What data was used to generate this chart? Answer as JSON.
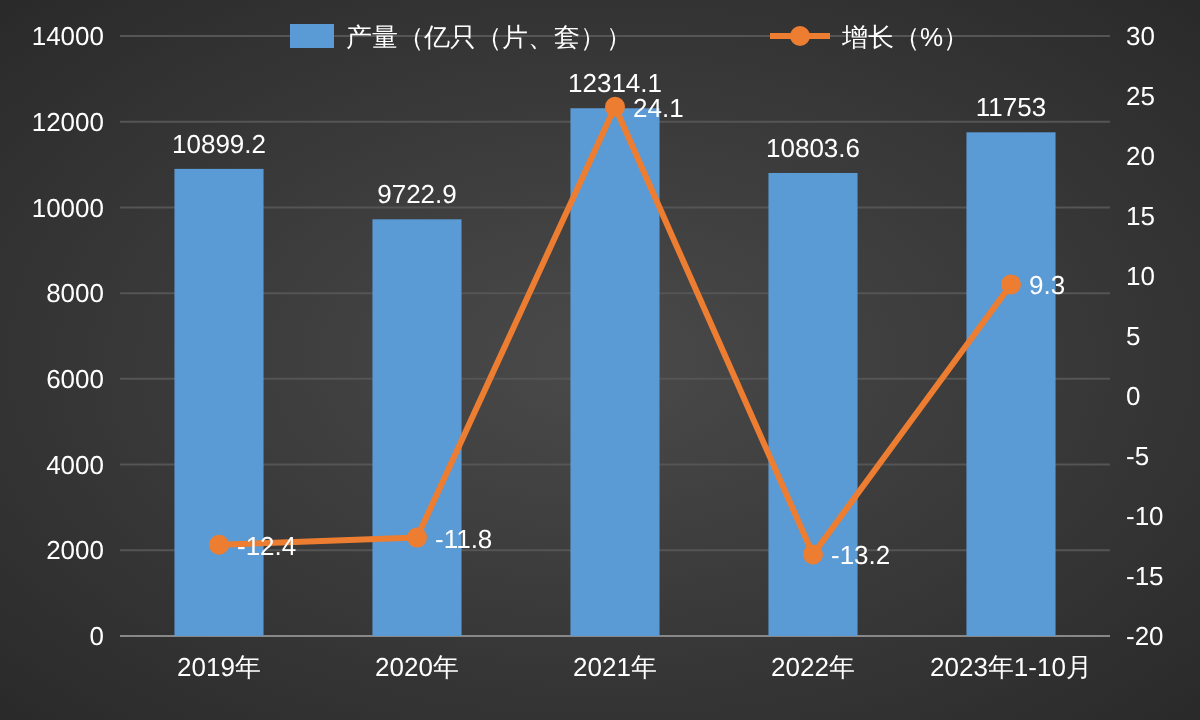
{
  "chart_data": {
    "type": "bar",
    "categories": [
      "2019年",
      "2020年",
      "2021年",
      "2022年",
      "2023年1-10月"
    ],
    "series": [
      {
        "name": "产量（亿只（片、套））",
        "color": "#5b9bd5",
        "values": [
          10899.2,
          9722.9,
          12314.1,
          10803.6,
          11753
        ]
      },
      {
        "name": "增长（%）",
        "type": "line",
        "axis": "y2",
        "color": "#ed7d31",
        "values": [
          -12.4,
          -11.8,
          24.1,
          -13.2,
          9.3
        ]
      }
    ],
    "ylim": [
      0,
      14000
    ],
    "yticks": [
      0,
      2000,
      4000,
      6000,
      8000,
      10000,
      12000,
      14000
    ],
    "y2lim": [
      -20,
      30
    ],
    "y2ticks": [
      -20,
      -15,
      -10,
      -5,
      0,
      5,
      10,
      15,
      20,
      25,
      30
    ],
    "grid": "y",
    "legend": "top",
    "marker": "circle",
    "data_labels": true
  }
}
